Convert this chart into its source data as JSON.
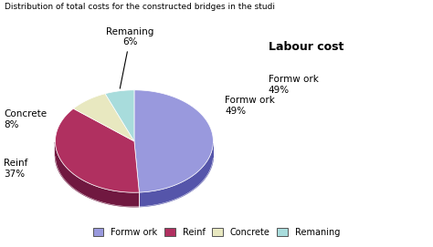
{
  "title": "Labour cost",
  "super_title": "Distribution of total costs for the constructed bridges in the studi",
  "labels": [
    "Formw ork",
    "Reinf",
    "Concrete",
    "Remaning"
  ],
  "values": [
    49,
    37,
    8,
    6
  ],
  "colors_top": [
    "#9999DD",
    "#B03060",
    "#E8E8C0",
    "#A8DCDC"
  ],
  "colors_side": [
    "#5555AA",
    "#701840",
    "#B0B090",
    "#70AAAA"
  ],
  "start_angle": 90,
  "legend_labels": [
    "Formw ork",
    "Reinf",
    "Concrete",
    "Remaning"
  ],
  "legend_colors": [
    "#9999DD",
    "#B03060",
    "#E8E8C0",
    "#A8DCDC"
  ],
  "legend_edge_colors": [
    "#5555AA",
    "#701840",
    "#B0B090",
    "#70AAAA"
  ]
}
